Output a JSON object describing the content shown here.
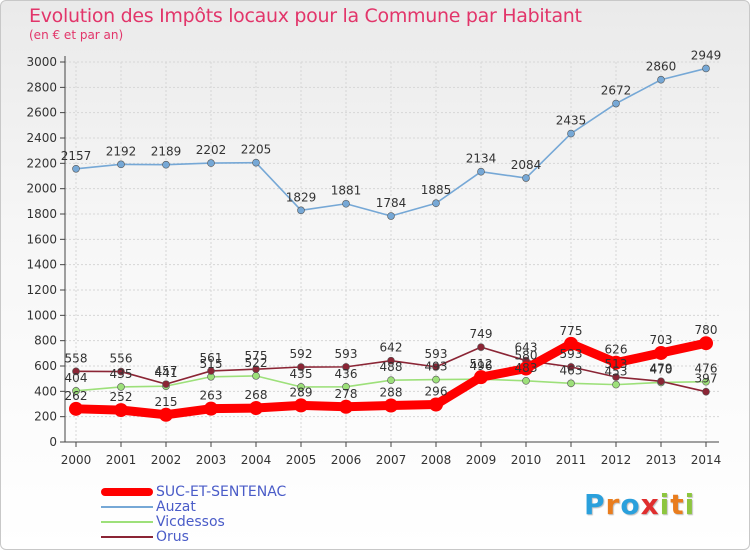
{
  "title": "Evolution des Impôts locaux pour la Commune par Habitant",
  "subtitle": "(en € et par an)",
  "brand": "Proxiti",
  "brand_letters": [
    {
      "ch": "P",
      "color": "#2aa0dc"
    },
    {
      "ch": "r",
      "color": "#e97d1e"
    },
    {
      "ch": "o",
      "color": "#2aa0dc"
    },
    {
      "ch": "x",
      "color": "#e02e2e"
    },
    {
      "ch": "i",
      "color": "#8dc63f"
    },
    {
      "ch": "t",
      "color": "#e97d1e"
    },
    {
      "ch": "i",
      "color": "#8dc63f"
    }
  ],
  "chart_data": {
    "type": "line",
    "x": [
      "2000",
      "2001",
      "2002",
      "2003",
      "2004",
      "2005",
      "2006",
      "2007",
      "2008",
      "2009",
      "2010",
      "2011",
      "2012",
      "2013",
      "2014"
    ],
    "ylim": [
      0,
      3000
    ],
    "yticks": [
      0,
      200,
      400,
      600,
      800,
      1000,
      1200,
      1400,
      1600,
      1800,
      2000,
      2200,
      2400,
      2600,
      2800,
      3000
    ],
    "grid": true,
    "legend_position": "bottom-left",
    "series": [
      {
        "name": "SUC-ET-SENTENAC",
        "color": "#ff0000",
        "values": [
          262,
          252,
          215,
          263,
          268,
          289,
          278,
          288,
          296,
          512,
          580,
          775,
          626,
          703,
          780
        ],
        "labels": [
          "262",
          "252",
          "215",
          "263",
          "268",
          "289",
          "278",
          "288",
          "296",
          "512",
          "580",
          "775",
          "626",
          "703",
          "780"
        ]
      },
      {
        "name": "Auzat",
        "color": "#76a8d6",
        "values": [
          2157,
          2192,
          2189,
          2202,
          2205,
          1829,
          1881,
          1784,
          1885,
          2134,
          2084,
          2435,
          2672,
          2860,
          2949
        ],
        "labels": [
          "2157",
          "2192",
          "2189",
          "2202",
          "2205",
          "1829",
          "1881",
          "1784",
          "1885",
          "2134",
          "2084",
          "2435",
          "2672",
          "2860",
          "2949"
        ]
      },
      {
        "name": "Vicdessos",
        "color": "#9de07a",
        "values": [
          404,
          435,
          441,
          515,
          522,
          435,
          436,
          488,
          493,
          496,
          483,
          463,
          453,
          470,
          476
        ],
        "labels": [
          "404",
          "435",
          "441",
          "515",
          "522",
          "435",
          "436",
          "488",
          "493",
          "496",
          "483",
          "463",
          "453",
          "470",
          "476"
        ]
      },
      {
        "name": "Orus",
        "color": "#8b2535",
        "values": [
          558,
          556,
          457,
          561,
          575,
          592,
          593,
          642,
          593,
          749,
          643,
          593,
          513,
          479,
          397
        ],
        "labels": [
          "558",
          "556",
          "457",
          "561",
          "575",
          "592",
          "593",
          "642",
          "593",
          "749",
          "643",
          "593",
          "513",
          "479",
          "397"
        ]
      }
    ]
  }
}
